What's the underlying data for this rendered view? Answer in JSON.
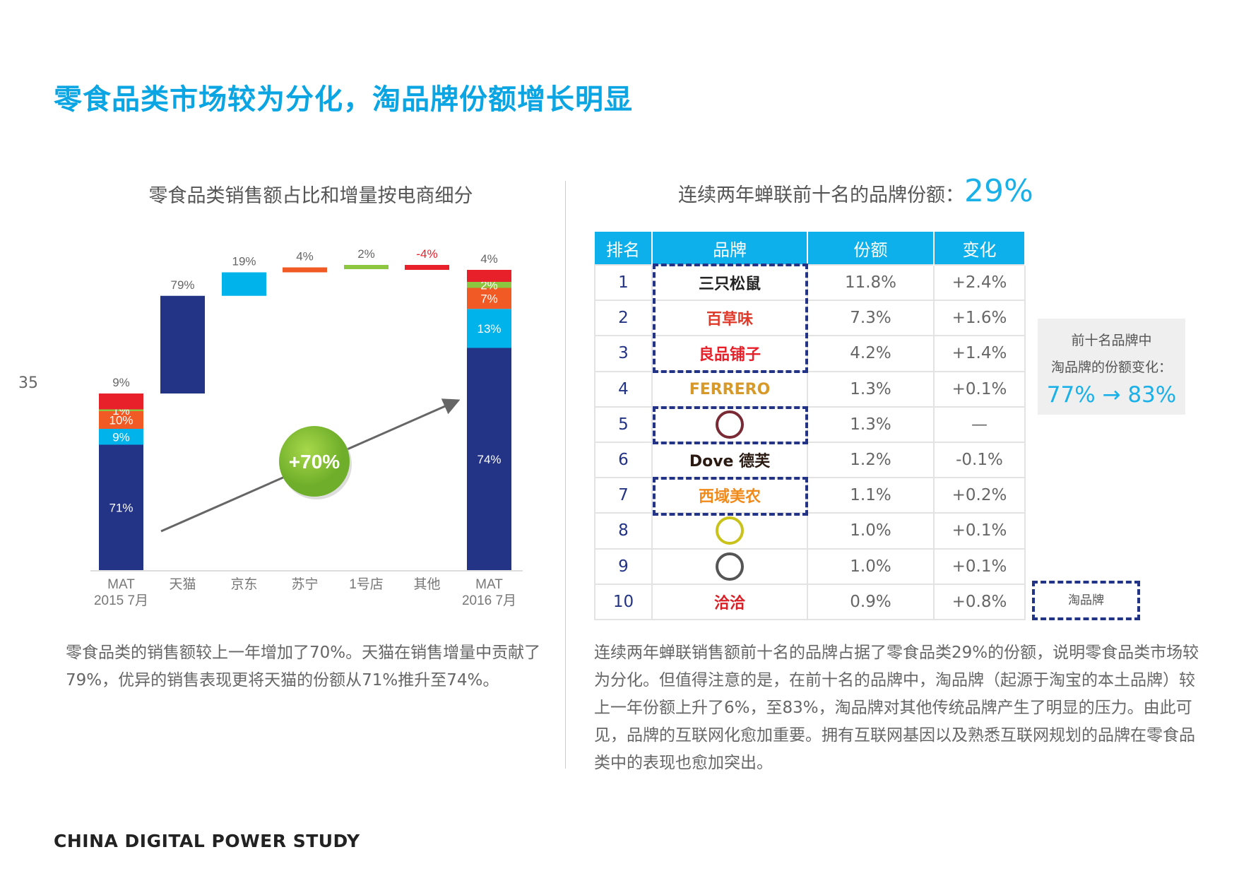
{
  "page_title": "零食品类市场较为分化，淘品牌份额增长明显",
  "page_number": "35",
  "chart_data": {
    "type": "bar",
    "subtype": "waterfall-stacked",
    "title": "零食品类销售额占比和增量按电商细分",
    "categories": [
      "MAT 2015 7月",
      "天猫",
      "京东",
      "苏宁",
      "1号店",
      "其他",
      "MAT 2016 7月"
    ],
    "category_lines": [
      [
        "MAT",
        "2015 7月"
      ],
      [
        "天猫"
      ],
      [
        "京东"
      ],
      [
        "苏宁"
      ],
      [
        "1号店"
      ],
      [
        "其他"
      ],
      [
        "MAT",
        "2016 7月"
      ]
    ],
    "segments": [
      "天猫",
      "京东",
      "苏宁",
      "1号店",
      "其他"
    ],
    "colors": {
      "天猫": "#233385",
      "京东": "#00b3ea",
      "苏宁": "#f15a24",
      "1号店": "#8dc63f",
      "其他": "#e8202a"
    },
    "start": {
      "total": 100,
      "shares": [
        71,
        9,
        10,
        1,
        9
      ],
      "labels": [
        "71%",
        "9%",
        "10%",
        "1%",
        "9%"
      ]
    },
    "end": {
      "total": 170,
      "shares": [
        74,
        13,
        7,
        2,
        4
      ],
      "labels": [
        "74%",
        "13%",
        "7%",
        "2%",
        "4%"
      ]
    },
    "increments": {
      "shares_of_growth": [
        79,
        19,
        4,
        2,
        -4
      ],
      "labels": [
        "79%",
        "19%",
        "4%",
        "2%",
        "-4%"
      ]
    },
    "growth_label": "+70%",
    "growth_value": 70,
    "ylim": [
      0,
      175
    ]
  },
  "right_title": {
    "text": "连续两年蝉联前十名的品牌份额：",
    "value": "29%"
  },
  "table": {
    "headers": [
      "排名",
      "品牌",
      "份额",
      "变化"
    ],
    "rows": [
      {
        "rank": "1",
        "logo": "三只松鼠",
        "share": "11.8%",
        "change": "+2.4%",
        "tao": true,
        "color": "#222"
      },
      {
        "rank": "2",
        "logo": "百草味",
        "share": "7.3%",
        "change": "+1.6%",
        "tao": true,
        "color": "#e03a2a"
      },
      {
        "rank": "3",
        "logo": "良品铺子",
        "share": "4.2%",
        "change": "+1.4%",
        "tao": true,
        "color": "#e8202a"
      },
      {
        "rank": "4",
        "logo": "FERRERO",
        "share": "1.3%",
        "change": "+0.1%",
        "tao": false,
        "color": "#d79a2a"
      },
      {
        "rank": "5",
        "logo": "",
        "share": "1.3%",
        "change": "—",
        "tao": true,
        "color": "#7a2a35"
      },
      {
        "rank": "6",
        "logo": "Dove 德芙",
        "share": "1.2%",
        "change": "-0.1%",
        "tao": false,
        "color": "#2a1a12"
      },
      {
        "rank": "7",
        "logo": "西域美农",
        "share": "1.1%",
        "change": "+0.2%",
        "tao": true,
        "color": "#f08a1a"
      },
      {
        "rank": "8",
        "logo": "",
        "share": "1.0%",
        "change": "+0.1%",
        "tao": false,
        "color": "#c9c21a"
      },
      {
        "rank": "9",
        "logo": "",
        "share": "1.0%",
        "change": "+0.1%",
        "tao": false,
        "color": "#555"
      },
      {
        "rank": "10",
        "logo": "洽洽",
        "share": "0.9%",
        "change": "+0.8%",
        "tao": false,
        "color": "#d81f26"
      }
    ]
  },
  "side_box": {
    "line1": "前十名品牌中",
    "line2": "淘品牌的份额变化：",
    "value": "77% → 83%"
  },
  "legend": {
    "label": "淘品牌"
  },
  "paragraph_left": "零食品类的销售额较上一年增加了70%。天猫在销售增量中贡献了79%，优异的销售表现更将天猫的份额从71%推升至74%。",
  "paragraph_right": "连续两年蝉联销售额前十名的品牌占据了零食品类29%的份额，说明零食品类市场较为分化。但值得注意的是，在前十名的品牌中，淘品牌（起源于淘宝的本土品牌）较上一年份额上升了6%，至83%，淘品牌对其他传统品牌产生了明显的压力。由此可见，品牌的互联网化愈加重要。拥有互联网基因以及熟悉互联网规划的品牌在零食品类中的表现也愈加突出。",
  "footer": "CHINA DIGITAL POWER STUDY"
}
